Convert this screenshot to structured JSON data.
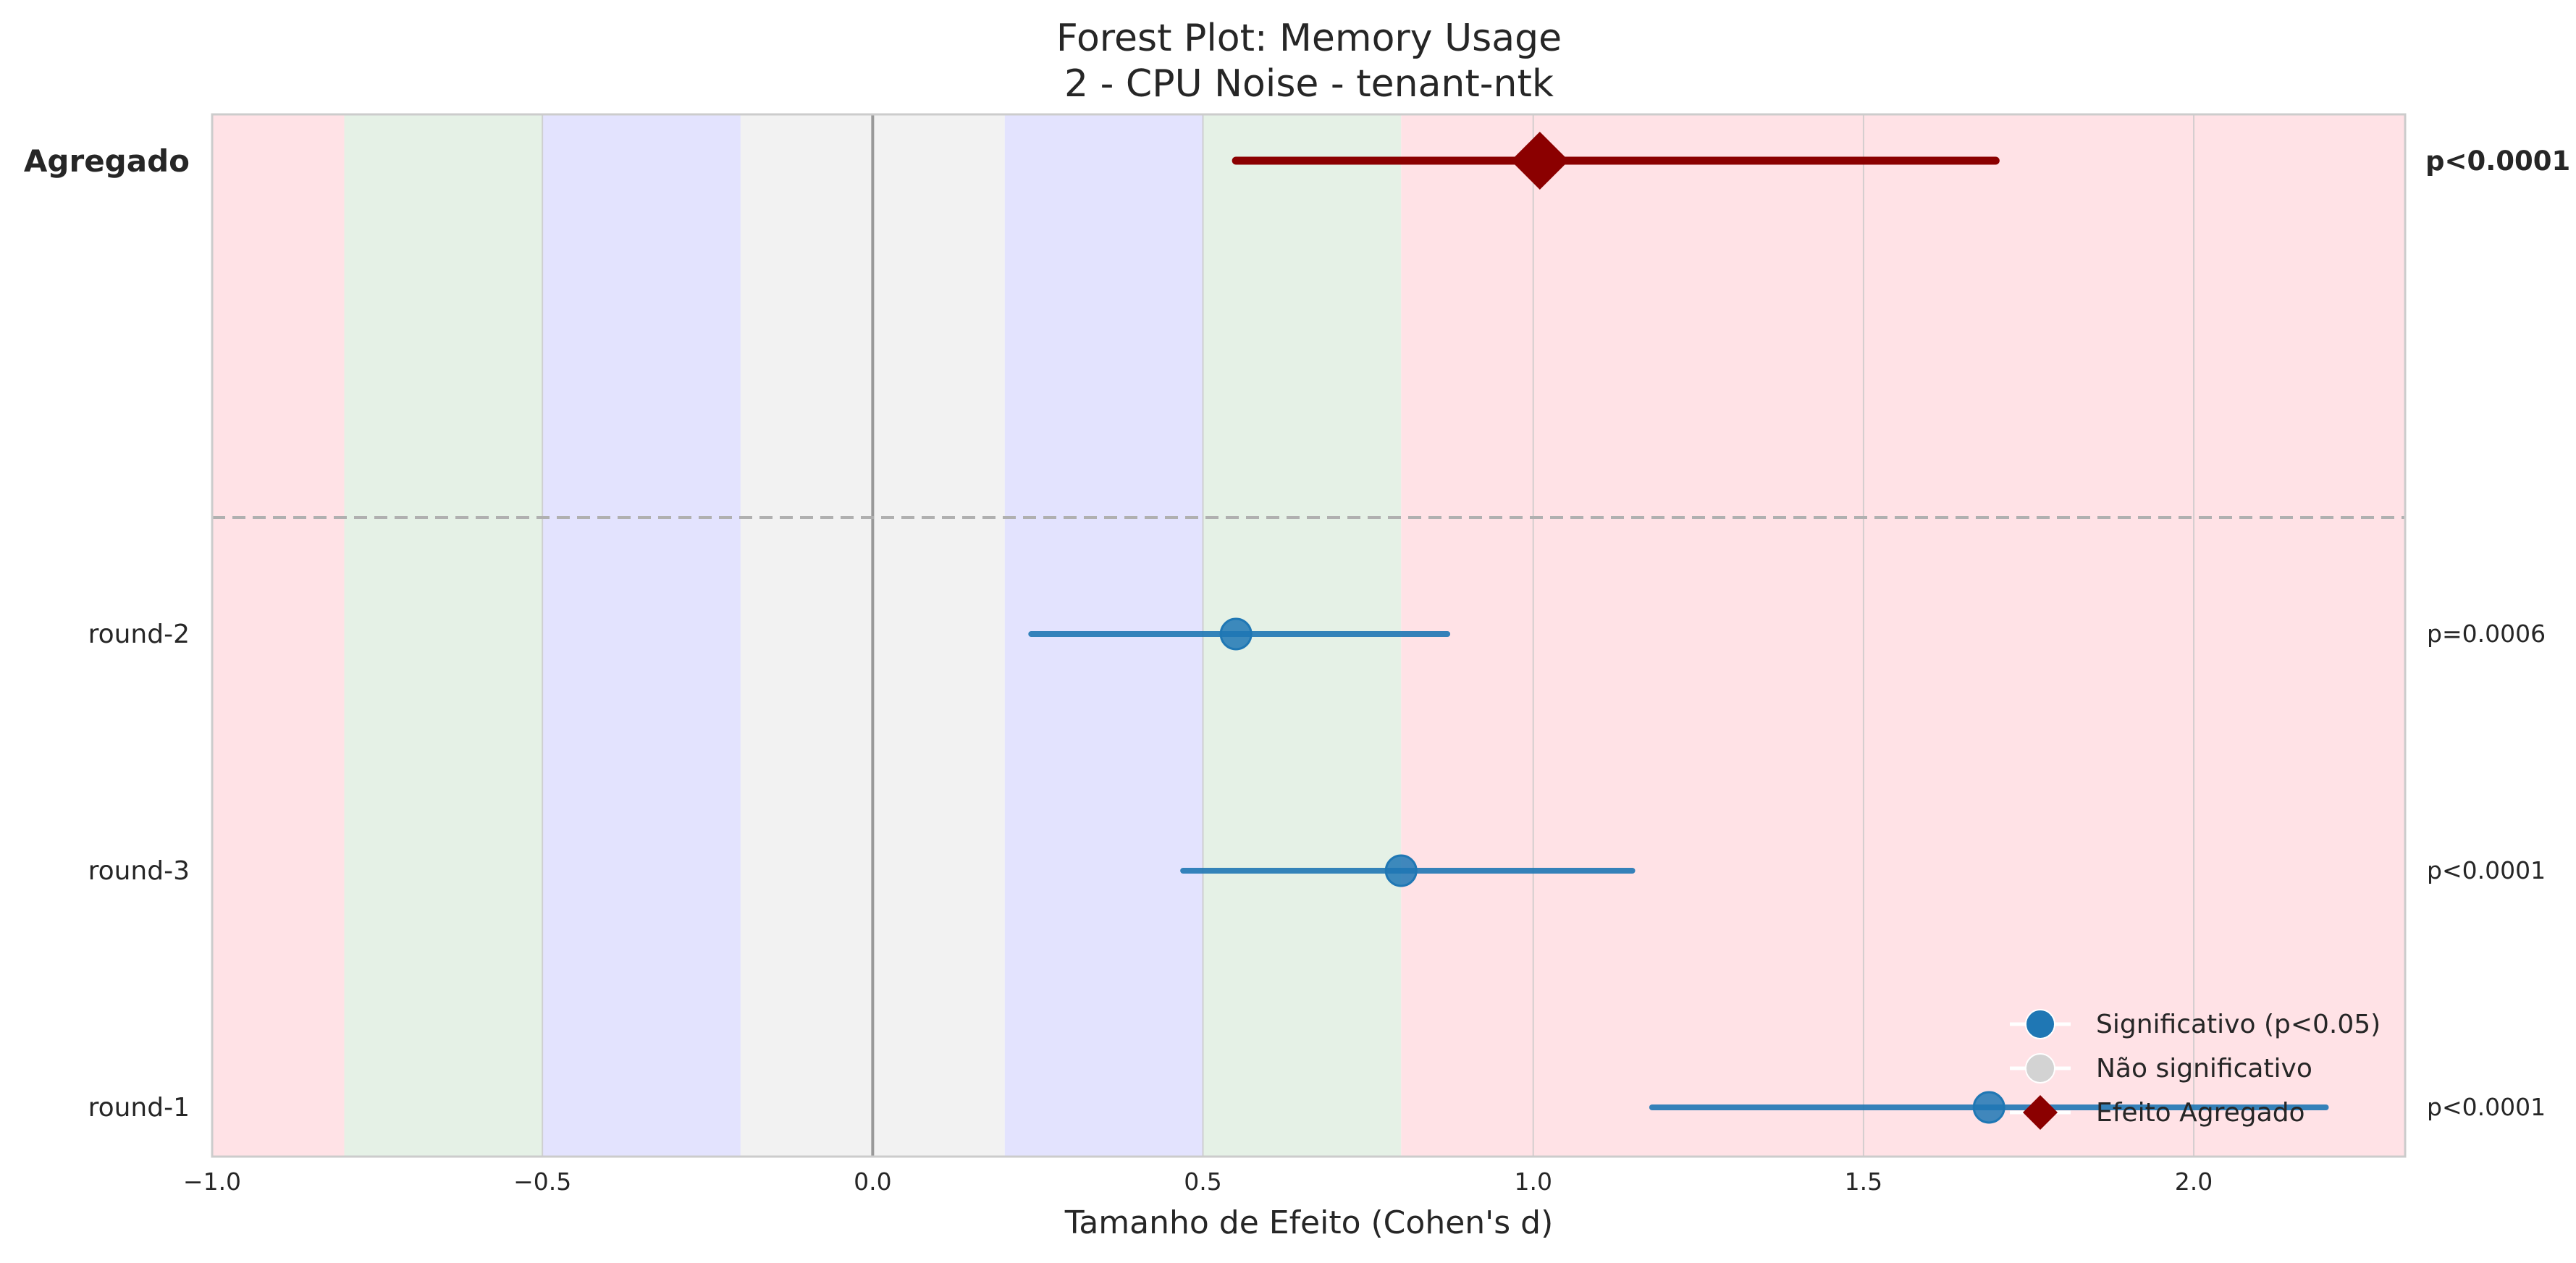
{
  "chart_data": {
    "type": "forest",
    "title_line1": "Forest Plot: Memory Usage",
    "title_line2": "2 - CPU Noise - tenant-ntk",
    "xlabel": "Tamanho de Efeito (Cohen's d)",
    "xlim": [
      -1.0,
      2.32
    ],
    "xticks": [
      -1.0,
      -0.5,
      0.0,
      0.5,
      1.0,
      1.5,
      2.0
    ],
    "xtick_labels": [
      "−1.0",
      "−0.5",
      "0.0",
      "0.5",
      "1.0",
      "1.5",
      "2.0"
    ],
    "grid": true,
    "effect_bands": [
      {
        "from": -1.0,
        "to": -0.8,
        "color": "#ffe2e6"
      },
      {
        "from": -0.8,
        "to": -0.5,
        "color": "#e5f1e6"
      },
      {
        "from": -0.5,
        "to": -0.2,
        "color": "#e3e3fe"
      },
      {
        "from": -0.2,
        "to": 0.2,
        "color": "#f2f2f2"
      },
      {
        "from": 0.2,
        "to": 0.5,
        "color": "#e3e3fe"
      },
      {
        "from": 0.5,
        "to": 0.8,
        "color": "#e5f1e6"
      },
      {
        "from": 0.8,
        "to": 2.32,
        "color": "#ffe2e6"
      }
    ],
    "aggregate": {
      "label": "Agregado",
      "estimate": 1.01,
      "ci": [
        0.55,
        1.7
      ],
      "p_label": "p<0.0001",
      "color": "#8b0000"
    },
    "studies": [
      {
        "label": "round-2",
        "estimate": 0.55,
        "ci": [
          0.24,
          0.87
        ],
        "p_label": "p=0.0006",
        "significant": true
      },
      {
        "label": "round-3",
        "estimate": 0.8,
        "ci": [
          0.47,
          1.15
        ],
        "p_label": "p<0.0001",
        "significant": true
      },
      {
        "label": "round-1",
        "estimate": 1.69,
        "ci": [
          1.18,
          2.2
        ],
        "p_label": "p<0.0001",
        "significant": true
      }
    ],
    "colors": {
      "significant": "#1f77b4",
      "not_significant": "#d3d3d3",
      "aggregate": "#8b0000"
    },
    "legend": {
      "placement": "lower-right",
      "entries": [
        {
          "label": "Significativo (p<0.05)",
          "marker": "circle",
          "color": "#1f77b4"
        },
        {
          "label": "Não significativo",
          "marker": "circle",
          "color": "#d3d3d3"
        },
        {
          "label": "Efeito Agregado",
          "marker": "diamond",
          "color": "#8b0000"
        }
      ]
    }
  }
}
